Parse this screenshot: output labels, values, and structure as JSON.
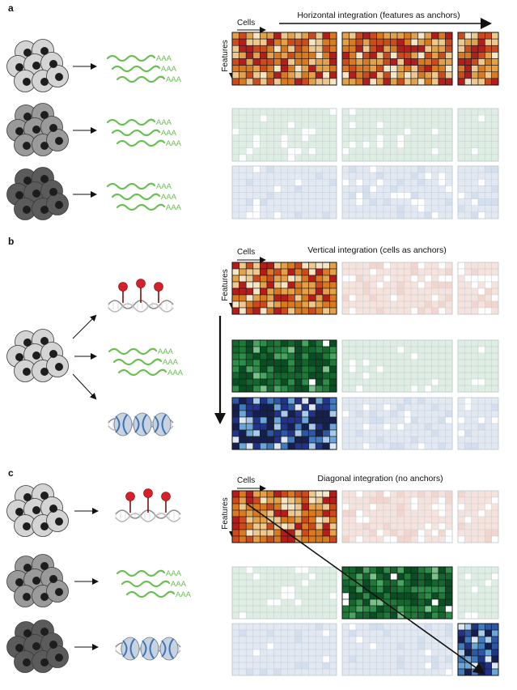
{
  "panels": [
    {
      "letter": "a",
      "title": "Horizontal integration (features as anchors)",
      "cells_label": "Cells",
      "features_label": "Features",
      "left_rows": [
        {
          "cell_shade": "light",
          "molecule": "rna",
          "rna_labels": [
            "AAA",
            "AAA",
            "AAA"
          ]
        },
        {
          "cell_shade": "medium",
          "molecule": "rna",
          "rna_labels": [
            "AAA",
            "AAA",
            "AAA"
          ]
        },
        {
          "cell_shade": "dark",
          "molecule": "rna",
          "rna_labels": [
            "AAA",
            "AAA",
            "AAA"
          ]
        }
      ],
      "matrix_rows": [
        [
          "rna-strong",
          "rna-strong",
          "rna-strong"
        ],
        [
          "green-faint",
          "green-faint",
          "green-faint"
        ],
        [
          "blue-faint",
          "blue-faint",
          "blue-faint"
        ]
      ]
    },
    {
      "letter": "b",
      "title": "Vertical integration (cells as anchors)",
      "cells_label": "Cells",
      "features_label": "Features",
      "left_rows": [
        {
          "cell_shade": "light",
          "molecule": "methylation"
        },
        {
          "cell_shade": "light",
          "molecule": "rna",
          "rna_labels": [
            "AAA",
            "AAA",
            "AAA"
          ]
        },
        {
          "cell_shade": "light",
          "molecule": "chromatin"
        }
      ],
      "matrix_rows": [
        [
          "rna-strong",
          "rna-faint",
          "rna-faint"
        ],
        [
          "green-strong",
          "green-faint",
          "green-faint"
        ],
        [
          "blue-strong",
          "blue-faint",
          "blue-faint"
        ]
      ]
    },
    {
      "letter": "c",
      "title": "Diagonal integration (no anchors)",
      "cells_label": "Cells",
      "features_label": "Features",
      "left_rows": [
        {
          "cell_shade": "light",
          "molecule": "methylation"
        },
        {
          "cell_shade": "medium",
          "molecule": "rna",
          "rna_labels": [
            "AAA",
            "AAA",
            "AAA"
          ]
        },
        {
          "cell_shade": "dark",
          "molecule": "chromatin"
        }
      ],
      "matrix_rows": [
        [
          "rna-strong",
          "rna-faint",
          "rna-faint"
        ],
        [
          "green-faint",
          "green-strong",
          "green-faint"
        ],
        [
          "blue-faint",
          "blue-faint",
          "blue-strong"
        ]
      ]
    }
  ],
  "colors": {
    "rna_palette": [
      "#b51d1d",
      "#cc4a1c",
      "#d97a21",
      "#e3a14a",
      "#edc98f",
      "#f5e6c8"
    ],
    "green_palette": [
      "#0a4f24",
      "#15672f",
      "#1f7a3a",
      "#2e8d4a",
      "#4aa360",
      "#7ec08c",
      "#cfe7d2"
    ],
    "blue_palette": [
      "#16204f",
      "#22348a",
      "#2d56a3",
      "#3f7bbf",
      "#6aa6d6",
      "#a9cbe8",
      "#dde8f4"
    ],
    "faint_green": "#dfeee2",
    "faint_blue": "#e3e9f3",
    "faint_rna": "#f6e3dd",
    "cell_light": "#d4d4d4",
    "cell_medium": "#9a9a9a",
    "cell_dark": "#5b5b5b",
    "rna_strand": "#6bbf52",
    "methyl_pin": "#d8202a"
  }
}
